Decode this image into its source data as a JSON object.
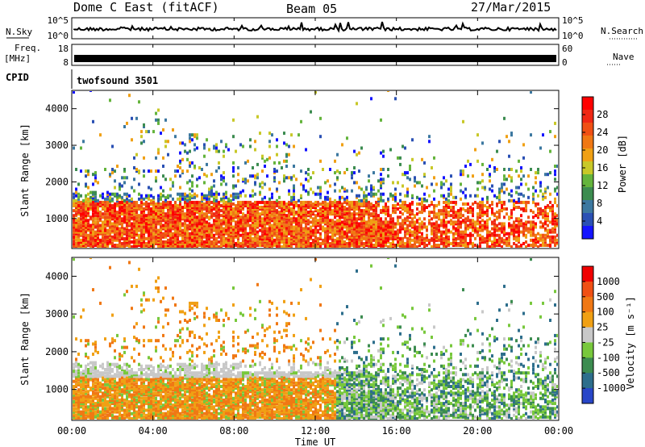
{
  "header": {
    "title": "Dome C East (fitACF)",
    "beam": "Beam 05",
    "date": "27/Mar/2015"
  },
  "status_panels": {
    "nsky_label": "N.Sky",
    "nsky_ticks": [
      "10^5",
      "10^0"
    ],
    "nsearch_label": "N.Search",
    "nsearch_ticks": [
      "10^5",
      "10^0"
    ],
    "freq_label_top": "Freq.",
    "freq_label_bottom": "[MHz]",
    "freq_ticks": [
      "18",
      "8"
    ],
    "nave_label": "Nave",
    "nave_ticks": [
      "60",
      "0"
    ],
    "cpid_label": "CPID",
    "cpid_value": "twofsound 3501"
  },
  "chart_data": [
    {
      "type": "heatmap",
      "panel": "power",
      "ylabel": "Slant Range [km]",
      "xlabel": "",
      "x_ticks": [
        "00:00",
        "04:00",
        "08:00",
        "12:00",
        "16:00",
        "20:00",
        "00:00"
      ],
      "x_range_hours": [
        0,
        24
      ],
      "y_ticks": [
        1000,
        2000,
        3000,
        4000
      ],
      "y_range_km": [
        180,
        4500
      ],
      "colorbar": {
        "label": "Power [dB]",
        "ticks": [
          "4",
          "8",
          "12",
          "16",
          "20",
          "24",
          "28"
        ],
        "range": [
          0,
          30
        ],
        "colors": [
          "#1414ff",
          "#2a50b4",
          "#3c78a0",
          "#3c8c50",
          "#64b43c",
          "#c8c828",
          "#f0a014",
          "#f07814",
          "#f05014",
          "#f02814",
          "#ff0000"
        ]
      }
    },
    {
      "type": "heatmap",
      "panel": "velocity",
      "ylabel": "Slant Range [km]",
      "xlabel": "Time UT",
      "x_ticks": [
        "00:00",
        "04:00",
        "08:00",
        "12:00",
        "16:00",
        "20:00",
        "00:00"
      ],
      "x_range_hours": [
        0,
        24
      ],
      "y_ticks": [
        1000,
        2000,
        3000,
        4000
      ],
      "y_range_km": [
        180,
        4500
      ],
      "colorbar": {
        "label": "Velocity [m s⁻¹]",
        "ticks": [
          "1000",
          "500",
          "100",
          "25",
          "-25",
          "-100",
          "-500",
          "-1000"
        ],
        "colors": [
          "#2846c8",
          "#2d6e8c",
          "#3c8c50",
          "#78c83c",
          "#c8c8c8",
          "#f0a014",
          "#f07814",
          "#f05014",
          "#f00000"
        ]
      }
    }
  ]
}
